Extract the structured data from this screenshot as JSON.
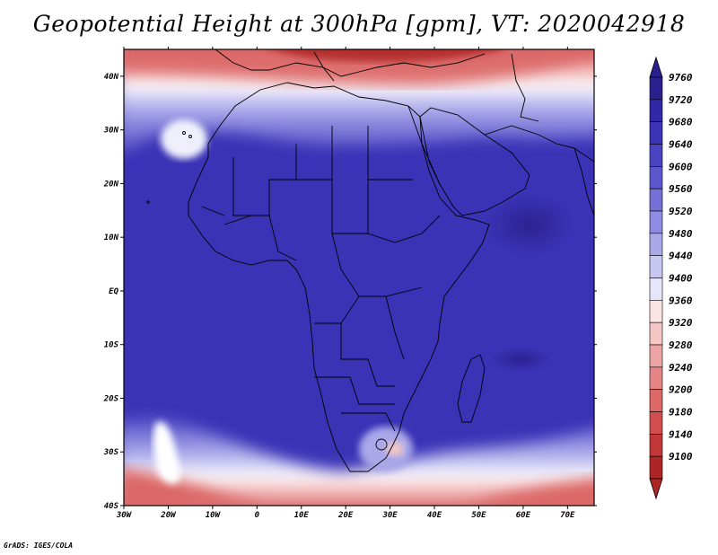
{
  "title": "Geopotential Height at 300hPa [gpm], VT: 2020042918",
  "credit": "GrADS: IGES/COLA",
  "map": {
    "region": "Africa",
    "variable": "Geopotential Height",
    "level": "300hPa",
    "units": "gpm",
    "valid_time": "2020042918",
    "projection": "latlon",
    "lon_range": [
      -30,
      76
    ],
    "lat_range": [
      -40,
      45
    ],
    "lon_ticks": [
      "30W",
      "20W",
      "10W",
      "0",
      "10E",
      "20E",
      "30E",
      "40E",
      "50E",
      "60E",
      "70E"
    ],
    "lat_ticks": [
      "40N",
      "30N",
      "20N",
      "10N",
      "EQ",
      "10S",
      "20S",
      "30S",
      "40S"
    ]
  },
  "colorbar": {
    "labels": [
      "9760",
      "9720",
      "9680",
      "9640",
      "9600",
      "9560",
      "9520",
      "9480",
      "9440",
      "9400",
      "9360",
      "9320",
      "9280",
      "9240",
      "9200",
      "9180",
      "9140",
      "9100"
    ],
    "colors": [
      "#2a1f8c",
      "#3128a8",
      "#3a33b6",
      "#4a44c2",
      "#5c57cc",
      "#7470d6",
      "#8e8be0",
      "#aaa8e9",
      "#c8c7f2",
      "#e6e6fb",
      "#fbe4e4",
      "#f5c6c6",
      "#eda4a4",
      "#e58585",
      "#dc6868",
      "#d04e4e",
      "#c23838",
      "#ad2525"
    ]
  }
}
